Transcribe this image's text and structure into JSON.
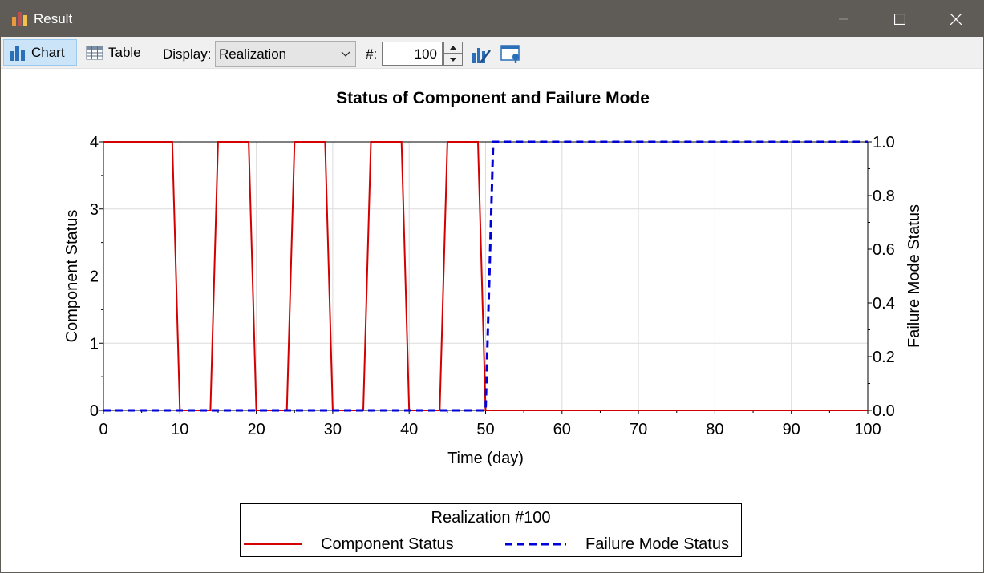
{
  "window": {
    "title": "Result"
  },
  "toolbar": {
    "chart_label": "Chart",
    "table_label": "Table",
    "display_label": "Display:",
    "display_value": "Realization",
    "number_label": "#:",
    "number_value": "100"
  },
  "legend": {
    "title": "Realization #100",
    "items": [
      "Component Status",
      "Failure Mode Status"
    ]
  },
  "colors": {
    "component": "#d40000",
    "failure": "#0000d8",
    "titlebar": "#5f5b57",
    "accent": "#cce4f7"
  },
  "chart_data": {
    "type": "line",
    "title": "Status of Component and Failure Mode",
    "xlabel": "Time (day)",
    "ylabel": "Component Status",
    "y2label": "Failure Mode Status",
    "xlim": [
      0,
      100
    ],
    "ylim": [
      0,
      4
    ],
    "y2lim": [
      0,
      1.0
    ],
    "xticks": [
      "0",
      "10",
      "20",
      "30",
      "40",
      "50",
      "60",
      "70",
      "80",
      "90",
      "100"
    ],
    "yticks": [
      "0",
      "1",
      "2",
      "3",
      "4"
    ],
    "y2ticks": [
      "0.0",
      "0.2",
      "0.4",
      "0.6",
      "0.8",
      "1.0"
    ],
    "grid": true,
    "legend_position": "bottom",
    "series": [
      {
        "name": "Component Status",
        "axis": "left",
        "style": "solid",
        "x": [
          0,
          9,
          10,
          14,
          15,
          19,
          20,
          24,
          25,
          29,
          30,
          34,
          35,
          39,
          40,
          44,
          45,
          49,
          50,
          100
        ],
        "y": [
          4,
          4,
          0,
          0,
          4,
          4,
          0,
          0,
          4,
          4,
          0,
          0,
          4,
          4,
          0,
          0,
          4,
          4,
          0,
          0
        ]
      },
      {
        "name": "Failure Mode Status",
        "axis": "right",
        "style": "dashed",
        "x": [
          0,
          50,
          51,
          100
        ],
        "y": [
          0,
          0,
          1.0,
          1.0
        ]
      }
    ]
  }
}
